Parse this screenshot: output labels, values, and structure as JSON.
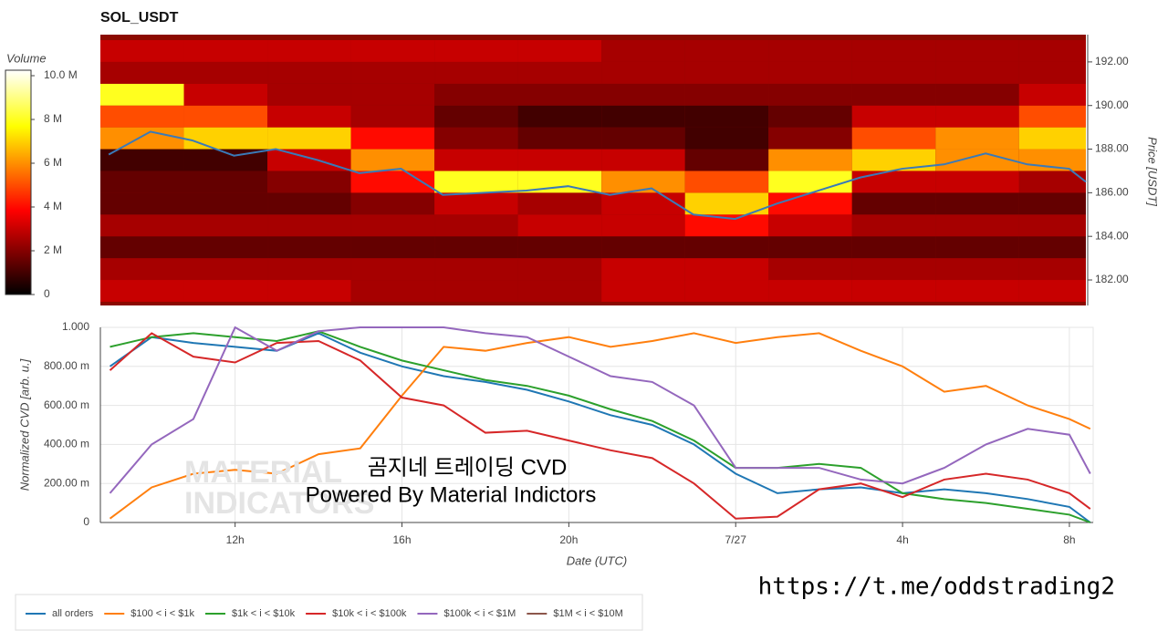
{
  "chart_data": [
    {
      "type": "heatmap",
      "title": "SOL_USDT",
      "colorbar_title": "Volume",
      "y_title": "Price [USDT]",
      "colormap": "hot",
      "x_bins": [
        8.8,
        10.8,
        12.8,
        14.8,
        16.8,
        18.8,
        20.8,
        22.8,
        24.8,
        26.8,
        28.8,
        30.8,
        32.4
      ],
      "y_bins": [
        181,
        182,
        183,
        184,
        185,
        186,
        187,
        188,
        189,
        190,
        191,
        192,
        193
      ],
      "z": [
        [
          3,
          3,
          3,
          2.5,
          2.5,
          2.5,
          3,
          3,
          3,
          3,
          3,
          3
        ],
        [
          2.5,
          2.5,
          2.5,
          2.5,
          2.5,
          2.5,
          3,
          3,
          2.5,
          2.5,
          2.5,
          2.5
        ],
        [
          1.5,
          1.5,
          1.5,
          1.5,
          1.5,
          1.5,
          1.5,
          1.5,
          1.5,
          1.5,
          1.5,
          1.5
        ],
        [
          2.5,
          2.5,
          2.5,
          2.5,
          2.5,
          3,
          3,
          4,
          3,
          2.5,
          2.5,
          2.5
        ],
        [
          1.5,
          1.5,
          1.5,
          2,
          3,
          2.5,
          3,
          7,
          4,
          1.5,
          1.5,
          1.5
        ],
        [
          1.5,
          1.5,
          2,
          4,
          8,
          8,
          6,
          5,
          8,
          3,
          3,
          2.5
        ],
        [
          1,
          1,
          3,
          6,
          3,
          3,
          3,
          1.5,
          6,
          7,
          6,
          6
        ],
        [
          6,
          7,
          7,
          4,
          2,
          1.5,
          1.5,
          1,
          2,
          5,
          6,
          7
        ],
        [
          5,
          5,
          3,
          2.5,
          1.5,
          1,
          1,
          1,
          1.5,
          3,
          3,
          5
        ],
        [
          8,
          3,
          2.5,
          2.5,
          2,
          2,
          2,
          2,
          2,
          2,
          2,
          3
        ],
        [
          2.5,
          2.5,
          2.5,
          2.5,
          2.5,
          2.5,
          2.5,
          2.5,
          2.5,
          2.5,
          2.5,
          2.5
        ],
        [
          3,
          3,
          3,
          3,
          3,
          3,
          2.5,
          2.5,
          2.5,
          2.5,
          2.5,
          2.5
        ]
      ],
      "xlim": [
        8.8,
        32.4
      ],
      "ylim": [
        180.83,
        193.25
      ],
      "yticks": [
        {
          "value": 182,
          "label": "182.00"
        },
        {
          "value": 184,
          "label": "184.00"
        },
        {
          "value": 186,
          "label": "186.00"
        },
        {
          "value": 188,
          "label": "188.00"
        },
        {
          "value": 190,
          "label": "190.00"
        },
        {
          "value": 192,
          "label": "192.00"
        }
      ],
      "clim": [
        0,
        10.25
      ],
      "cticks": [
        0,
        {
          "value": 2,
          "label": "2 M"
        },
        {
          "value": 4,
          "label": "4 M"
        },
        {
          "value": 6,
          "label": "6 M"
        },
        {
          "value": 8,
          "label": "8 M"
        },
        {
          "value": 10,
          "label": "10.0 M"
        }
      ],
      "price_line": {
        "color": "#3a7ab8",
        "x": [
          9,
          10,
          11,
          12,
          13,
          14,
          15,
          16,
          17,
          18,
          19,
          20,
          21,
          22,
          23,
          24,
          25,
          26,
          27,
          28,
          29,
          30,
          31,
          32,
          32.4
        ],
        "values": [
          187.75,
          188.8,
          188.4,
          187.7,
          188,
          187.5,
          186.9,
          187.1,
          185.9,
          186,
          186.1,
          186.3,
          185.9,
          186.2,
          185,
          184.8,
          185.5,
          186.1,
          186.7,
          187.1,
          187.3,
          187.8,
          187.3,
          187.1,
          186.5
        ]
      }
    },
    {
      "type": "line",
      "y_title": "Normalized CVD [arb. u.]",
      "x_title": "Date (UTC)",
      "x": [
        9,
        10,
        11,
        12,
        13,
        14,
        15,
        16,
        17,
        18,
        19,
        20,
        21,
        22,
        23,
        24,
        25,
        26,
        27,
        28,
        29,
        30,
        31,
        32,
        32.5
      ],
      "xlim": [
        8.77,
        32.57
      ],
      "ylim": [
        0,
        1
      ],
      "xticks": [
        {
          "value": 12,
          "label": "12h"
        },
        {
          "value": 16,
          "label": "16h"
        },
        {
          "value": 20,
          "label": "20h"
        },
        {
          "value": 24,
          "label": "7/27"
        },
        {
          "value": 28,
          "label": "4h"
        },
        {
          "value": 32,
          "label": "8h"
        }
      ],
      "yticks": [
        0,
        {
          "value": 0.2,
          "label": "200.00 m"
        },
        {
          "value": 0.4,
          "label": "400.00 m"
        },
        {
          "value": 0.6,
          "label": "600.00 m"
        },
        {
          "value": 0.8,
          "label": "800.00 m"
        },
        {
          "value": 1,
          "label": "1.000"
        }
      ],
      "grid": true,
      "series": [
        {
          "name": "all orders",
          "color": "#1f77b4",
          "values": [
            0.8,
            0.95,
            0.92,
            0.9,
            0.88,
            0.97,
            0.87,
            0.8,
            0.75,
            0.72,
            0.68,
            0.62,
            0.55,
            0.5,
            0.4,
            0.25,
            0.15,
            0.17,
            0.18,
            0.15,
            0.17,
            0.15,
            0.12,
            0.08,
            0.0
          ]
        },
        {
          "name": "$100 < i < $1k",
          "color": "#ff7f0e",
          "values": [
            0.02,
            0.18,
            0.25,
            0.27,
            0.25,
            0.35,
            0.38,
            0.65,
            0.9,
            0.88,
            0.92,
            0.95,
            0.9,
            0.93,
            0.97,
            0.92,
            0.95,
            0.97,
            0.88,
            0.8,
            0.67,
            0.7,
            0.6,
            0.53,
            0.48
          ]
        },
        {
          "name": "$1k < i < $10k",
          "color": "#2ca02c",
          "values": [
            0.9,
            0.95,
            0.97,
            0.95,
            0.93,
            0.98,
            0.9,
            0.83,
            0.78,
            0.73,
            0.7,
            0.65,
            0.58,
            0.52,
            0.42,
            0.28,
            0.28,
            0.3,
            0.28,
            0.15,
            0.12,
            0.1,
            0.07,
            0.04,
            0.0
          ]
        },
        {
          "name": "$10k < i < $100k",
          "color": "#d62728",
          "values": [
            0.78,
            0.97,
            0.85,
            0.82,
            0.92,
            0.93,
            0.83,
            0.64,
            0.6,
            0.46,
            0.47,
            0.42,
            0.37,
            0.33,
            0.2,
            0.02,
            0.03,
            0.17,
            0.2,
            0.13,
            0.22,
            0.25,
            0.22,
            0.15,
            0.07
          ]
        },
        {
          "name": "$100k < i < $1M",
          "color": "#9467bd",
          "values": [
            0.15,
            0.4,
            0.53,
            1.0,
            0.88,
            0.98,
            1.0,
            1.0,
            1.0,
            0.97,
            0.95,
            0.85,
            0.75,
            0.72,
            0.6,
            0.28,
            0.28,
            0.28,
            0.22,
            0.2,
            0.28,
            0.4,
            0.48,
            0.45,
            0.25
          ]
        },
        {
          "name": "$1M < i < $10M",
          "color": "#8c564b",
          "values": [
            null,
            null,
            null,
            null,
            null,
            null,
            null,
            null,
            null,
            null,
            null,
            null,
            null,
            null,
            null,
            null,
            null,
            null,
            null,
            null,
            null,
            null,
            null,
            null,
            null
          ]
        }
      ]
    }
  ],
  "watermark": [
    "MATERIAL",
    "INDICATORS"
  ],
  "overlay": [
    "곰지네 트레이딩 CVD",
    "Powered By Material Indictors"
  ],
  "url": "https://t.me/oddstrading2"
}
